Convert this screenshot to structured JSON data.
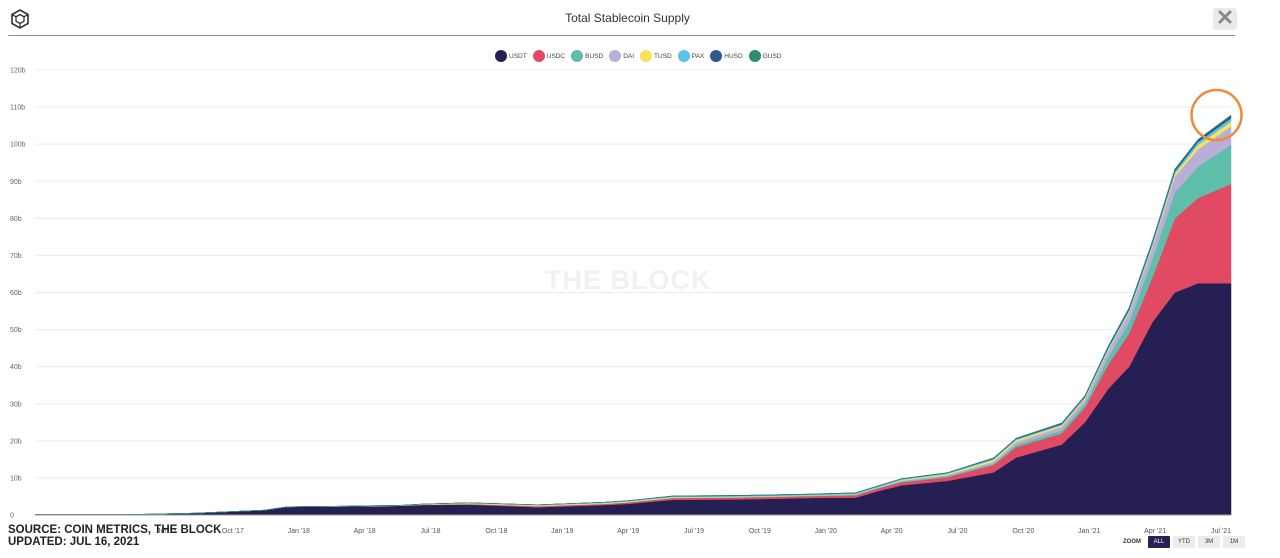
{
  "header": {
    "title": "Total Stablecoin Supply",
    "logo_icon": "the-block-cube-icon",
    "close_icon": "close-icon"
  },
  "legend": [
    {
      "name": "USDT",
      "color": "#251f53"
    },
    {
      "name": "USDC",
      "color": "#e04a63"
    },
    {
      "name": "BUSD",
      "color": "#5fbeaa"
    },
    {
      "name": "DAI",
      "color": "#b9aed8"
    },
    {
      "name": "TUSD",
      "color": "#f6e35a"
    },
    {
      "name": "PAX",
      "color": "#5bc3e6"
    },
    {
      "name": "HUSD",
      "color": "#2c5a8f"
    },
    {
      "name": "GUSD",
      "color": "#2f8b72"
    }
  ],
  "watermark": "THE BLOCK",
  "source": {
    "line1": "SOURCE: COIN METRICS, THE BLOCK",
    "line2": "UPDATED: JUL 16, 2021"
  },
  "zoom": {
    "label": "ZOOM",
    "buttons": [
      "ALL",
      "YTD",
      "3M",
      "1M"
    ],
    "active": "ALL"
  },
  "chart_data": {
    "type": "area",
    "stacked": true,
    "title": "Total Stablecoin Supply",
    "xlabel": "",
    "ylabel": "",
    "ylim": [
      0,
      120
    ],
    "y_unit": "b",
    "y_ticks": [
      "0",
      "10b",
      "20b",
      "30b",
      "40b",
      "50b",
      "60b",
      "70b",
      "80b",
      "90b",
      "100b",
      "110b",
      "120b"
    ],
    "x_ticks": [
      "Jul '17",
      "Oct '17",
      "Jan '18",
      "Apr '18",
      "Jul '18",
      "Oct '18",
      "Jan '19",
      "Apr '19",
      "Jul '19",
      "Oct '19",
      "Jan '20",
      "Apr '20",
      "Jul '20",
      "Oct '20",
      "Jan '21",
      "Apr '21",
      "Jul '21"
    ],
    "grid": true,
    "x": [
      "2017-03",
      "2017-07",
      "2017-10",
      "2018-01",
      "2018-02",
      "2018-04",
      "2018-07",
      "2018-08",
      "2018-10",
      "2019-01",
      "2019-04",
      "2019-05",
      "2019-07",
      "2019-10",
      "2020-01",
      "2020-03",
      "2020-04",
      "2020-05",
      "2020-07",
      "2020-09",
      "2020-10",
      "2020-12",
      "2021-01",
      "2021-02",
      "2021-03",
      "2021-04",
      "2021-05",
      "2021-06",
      "2021-07"
    ],
    "series": [
      {
        "name": "USDT",
        "values": [
          0.1,
          0.1,
          0.5,
          1.3,
          2.2,
          2.3,
          2.5,
          2.7,
          2.8,
          2.1,
          2.7,
          3.0,
          4.1,
          4.2,
          4.6,
          4.7,
          6.5,
          8.0,
          9.2,
          11.5,
          15.5,
          19.0,
          25.0,
          34.0,
          40.0,
          52.0,
          60.0,
          62.5,
          62.5
        ]
      },
      {
        "name": "USDC",
        "values": [
          0,
          0,
          0,
          0,
          0,
          0,
          0,
          0.1,
          0.2,
          0.3,
          0.3,
          0.4,
          0.5,
          0.5,
          0.5,
          0.6,
          0.7,
          0.8,
          1.0,
          2.0,
          2.8,
          3.0,
          4.0,
          6.5,
          9.0,
          12.0,
          20.0,
          23.0,
          26.8
        ]
      },
      {
        "name": "BUSD",
        "values": [
          0,
          0,
          0,
          0,
          0,
          0,
          0,
          0,
          0,
          0,
          0,
          0,
          0,
          0.1,
          0.1,
          0.2,
          0.2,
          0.3,
          0.3,
          0.4,
          0.6,
          0.8,
          1.0,
          2.0,
          3.0,
          5.0,
          7.0,
          8.5,
          10.5
        ]
      },
      {
        "name": "DAI",
        "values": [
          0,
          0,
          0,
          0,
          0,
          0,
          0,
          0,
          0,
          0.05,
          0.05,
          0.05,
          0.05,
          0.05,
          0.05,
          0.1,
          0.15,
          0.2,
          0.3,
          0.5,
          0.8,
          1.0,
          1.2,
          1.8,
          2.5,
          3.2,
          4.2,
          4.6,
          5.0
        ]
      },
      {
        "name": "TUSD",
        "values": [
          0,
          0,
          0,
          0,
          0.01,
          0.05,
          0.1,
          0.15,
          0.2,
          0.2,
          0.2,
          0.2,
          0.2,
          0.15,
          0.1,
          0.1,
          0.1,
          0.2,
          0.3,
          0.5,
          0.5,
          0.4,
          0.4,
          0.4,
          0.4,
          0.5,
          0.8,
          1.2,
          1.3
        ]
      },
      {
        "name": "PAX",
        "values": [
          0,
          0,
          0,
          0,
          0,
          0,
          0,
          0,
          0.1,
          0.1,
          0.2,
          0.2,
          0.2,
          0.2,
          0.2,
          0.2,
          0.2,
          0.2,
          0.2,
          0.3,
          0.3,
          0.3,
          0.3,
          0.4,
          0.5,
          0.6,
          0.7,
          0.8,
          0.9
        ]
      },
      {
        "name": "HUSD",
        "values": [
          0,
          0,
          0,
          0,
          0,
          0,
          0,
          0,
          0,
          0,
          0,
          0,
          0.1,
          0.1,
          0.1,
          0.1,
          0.1,
          0.1,
          0.1,
          0.2,
          0.2,
          0.3,
          0.3,
          0.4,
          0.5,
          0.5,
          0.5,
          0.6,
          0.7
        ]
      },
      {
        "name": "GUSD",
        "values": [
          0,
          0,
          0,
          0,
          0,
          0,
          0,
          0,
          0,
          0,
          0,
          0,
          0,
          0,
          0,
          0,
          0,
          0,
          0,
          0,
          0,
          0,
          0.02,
          0.05,
          0.05,
          0.08,
          0.1,
          0.12,
          0.15
        ]
      }
    ],
    "annotation": {
      "type": "circle",
      "color": "#f0893c",
      "at_x": "2021-07"
    }
  }
}
